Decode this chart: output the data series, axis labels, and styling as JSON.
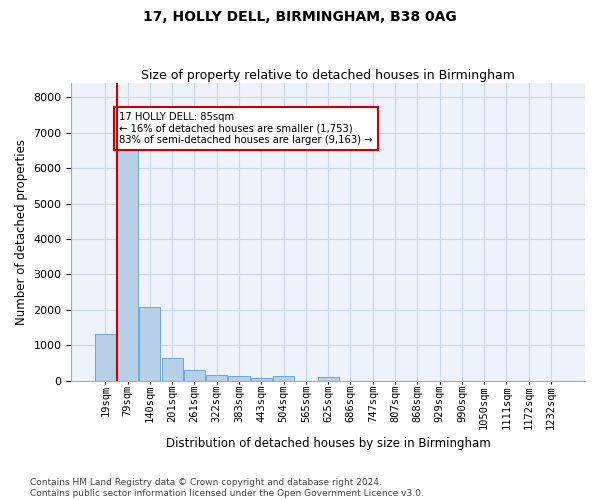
{
  "title1": "17, HOLLY DELL, BIRMINGHAM, B38 0AG",
  "title2": "Size of property relative to detached houses in Birmingham",
  "xlabel": "Distribution of detached houses by size in Birmingham",
  "ylabel": "Number of detached properties",
  "annotation_title": "17 HOLLY DELL: 85sqm",
  "annotation_line2": "← 16% of detached houses are smaller (1,753)",
  "annotation_line3": "83% of semi-detached houses are larger (9,163) →",
  "footer1": "Contains HM Land Registry data © Crown copyright and database right 2024.",
  "footer2": "Contains public sector information licensed under the Open Government Licence v3.0.",
  "bar_color": "#b8cfe8",
  "bar_edge_color": "#5a9fd4",
  "vline_color": "#cc0000",
  "annotation_box_edge": "#cc0000",
  "grid_color": "#c8d4e8",
  "background_color": "#eef2fb",
  "categories": [
    "19sqm",
    "79sqm",
    "140sqm",
    "201sqm",
    "261sqm",
    "322sqm",
    "383sqm",
    "443sqm",
    "504sqm",
    "565sqm",
    "625sqm",
    "686sqm",
    "747sqm",
    "807sqm",
    "868sqm",
    "929sqm",
    "990sqm",
    "1050sqm",
    "1111sqm",
    "1172sqm",
    "1232sqm"
  ],
  "values": [
    1310,
    6600,
    2080,
    650,
    295,
    160,
    120,
    90,
    120,
    0,
    110,
    0,
    0,
    0,
    0,
    0,
    0,
    0,
    0,
    0,
    0
  ],
  "ylim": [
    0,
    8400
  ],
  "yticks": [
    0,
    1000,
    2000,
    3000,
    4000,
    5000,
    6000,
    7000,
    8000
  ]
}
